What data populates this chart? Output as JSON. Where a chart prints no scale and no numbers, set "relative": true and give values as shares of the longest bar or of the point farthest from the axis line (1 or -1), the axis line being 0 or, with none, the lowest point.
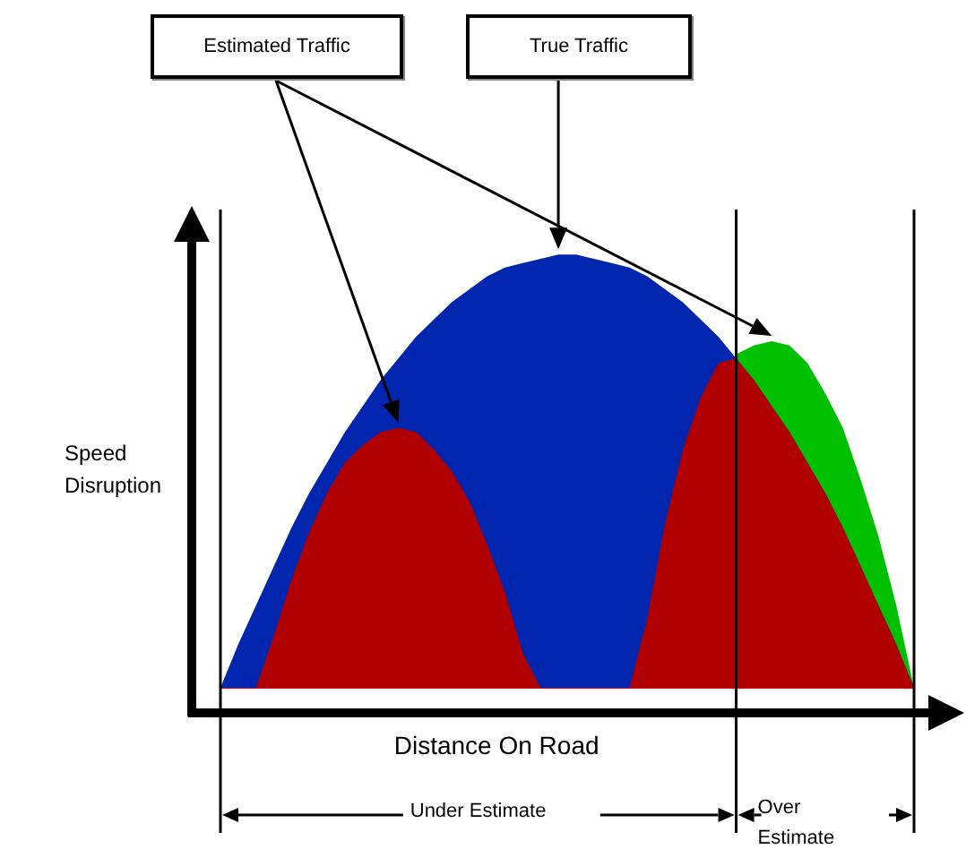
{
  "chart_data": {
    "type": "area",
    "relative": true,
    "legend": false,
    "xlabel": "Distance On Road",
    "ylabel": "Speed Disruption",
    "annotations": [
      "Estimated Traffic",
      "True Traffic",
      "Under Estimate",
      "Over Estimate"
    ],
    "categories": [
      null,
      null,
      null,
      null,
      null,
      null,
      null,
      null,
      null,
      null,
      null,
      null,
      null,
      null,
      null,
      null,
      null,
      null,
      null,
      null,
      null,
      null,
      null,
      null,
      null,
      null,
      null,
      null,
      null,
      null,
      null,
      null,
      null,
      null,
      null,
      null,
      null,
      null,
      null,
      null
    ],
    "series": [
      {
        "color": "#00c000",
        "values": [
          null,
          null,
          null,
          null,
          null,
          null,
          null,
          null,
          null,
          null,
          null,
          null,
          null,
          null,
          null,
          null,
          null,
          null,
          null,
          null,
          null,
          null,
          null,
          null,
          null,
          null,
          null,
          null,
          null,
          0.77,
          0.79,
          0.8,
          0.79,
          0.75,
          0.68,
          0.6,
          0.48,
          0.35,
          0.19,
          0
        ]
      },
      {
        "color": "#0026b0",
        "values": [
          0,
          0.1,
          0.19,
          0.28,
          0.37,
          0.45,
          0.52,
          0.59,
          0.65,
          0.71,
          0.76,
          0.81,
          0.85,
          0.89,
          0.92,
          0.95,
          0.97,
          0.98,
          0.99,
          1,
          1,
          0.99,
          0.98,
          0.97,
          0.95,
          0.92,
          0.89,
          0.85,
          0.81,
          0.76,
          0.71,
          0.65,
          0.59,
          0.52,
          0.45,
          0.37,
          0.28,
          0.19,
          0.1,
          0
        ]
      },
      {
        "color": "#b00000",
        "values": [
          0,
          0,
          0,
          0.12,
          0.25,
          0.36,
          0.45,
          0.52,
          0.56,
          0.59,
          0.6,
          0.59,
          0.55,
          0.5,
          0.43,
          0.33,
          0.22,
          0.08,
          0,
          0,
          0,
          0,
          0,
          0,
          0.16,
          0.38,
          0.55,
          0.67,
          0.75,
          0.76,
          0.71,
          0.65,
          0.59,
          0.52,
          0.45,
          0.37,
          0.28,
          0.19,
          0.1,
          0
        ]
      }
    ]
  }
}
